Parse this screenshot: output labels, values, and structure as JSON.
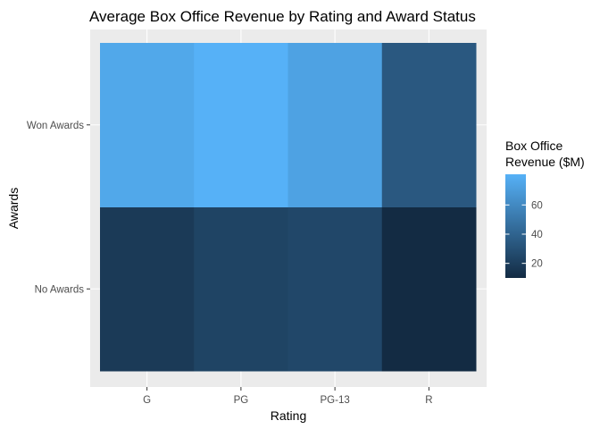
{
  "chart_data": {
    "type": "heatmap",
    "title": "Average Box Office Revenue by Rating and Award Status",
    "xlabel": "Rating",
    "ylabel": "Awards",
    "x_categories": [
      "G",
      "PG",
      "PG-13",
      "R"
    ],
    "y_categories": [
      "No Awards",
      "Won Awards"
    ],
    "values": [
      [
        18,
        23,
        25,
        10
      ],
      [
        76,
        81,
        73,
        34
      ]
    ],
    "color_scale": {
      "title_lines": [
        "Box Office",
        "Revenue ($M)"
      ],
      "min": 10,
      "max": 81,
      "low_color": "#132B43",
      "high_color": "#56B1F7",
      "breaks": [
        20,
        40,
        60
      ],
      "break_labels": [
        "20",
        "40",
        "60"
      ]
    },
    "panel_background": "#EBEBEB",
    "grid_color": "#FFFFFF",
    "legend_position": "right"
  }
}
